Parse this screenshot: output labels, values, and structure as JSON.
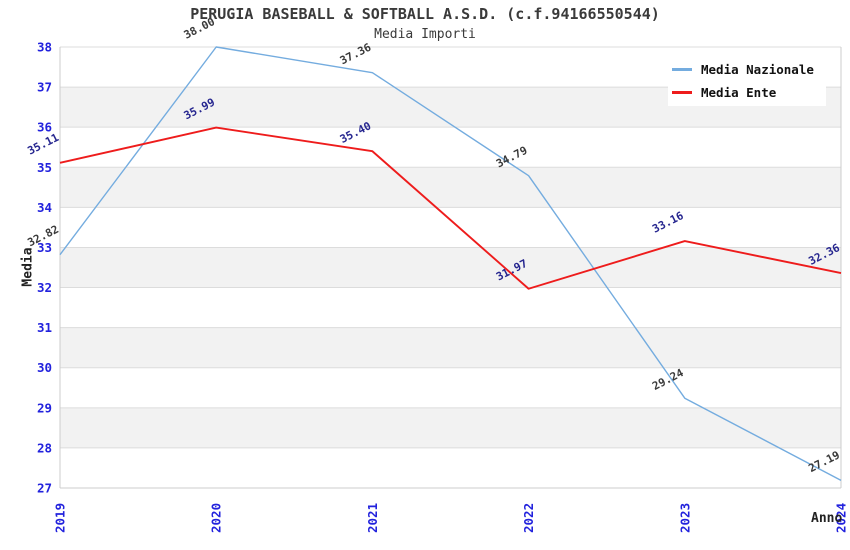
{
  "chart_data": {
    "type": "line",
    "title": "PERUGIA BASEBALL & SOFTBALL A.S.D. (c.f.94166550544)",
    "subtitle": "Media Importi",
    "xlabel": "Anno",
    "ylabel": "Media",
    "categories": [
      "2019",
      "2020",
      "2021",
      "2022",
      "2023",
      "2024"
    ],
    "series": [
      {
        "name": "Media Nazionale",
        "color": "#74acdf",
        "label_color": "#3a3a3a",
        "values": [
          32.82,
          38.0,
          37.36,
          34.79,
          29.24,
          27.19
        ]
      },
      {
        "name": "Media Ente",
        "color": "#ee1c1c",
        "label_color": "#26268f",
        "values": [
          35.11,
          35.99,
          35.4,
          31.97,
          33.16,
          32.36
        ]
      }
    ],
    "ylim": [
      27,
      38
    ],
    "yticks": [
      27,
      28,
      29,
      30,
      31,
      32,
      33,
      34,
      35,
      36,
      37,
      38
    ],
    "value_label_decimals": 2,
    "grid": "horizontal",
    "banded_background": true,
    "legend_position": "top-right",
    "colors": {
      "tick_label": "#2222dd",
      "gridline": "#dcdcdc",
      "band": "#f2f2f2",
      "spine": "#cccccc",
      "title_text": "#3a3a3a",
      "axis_title_text": "#222222",
      "legend_text": "#111111"
    }
  }
}
